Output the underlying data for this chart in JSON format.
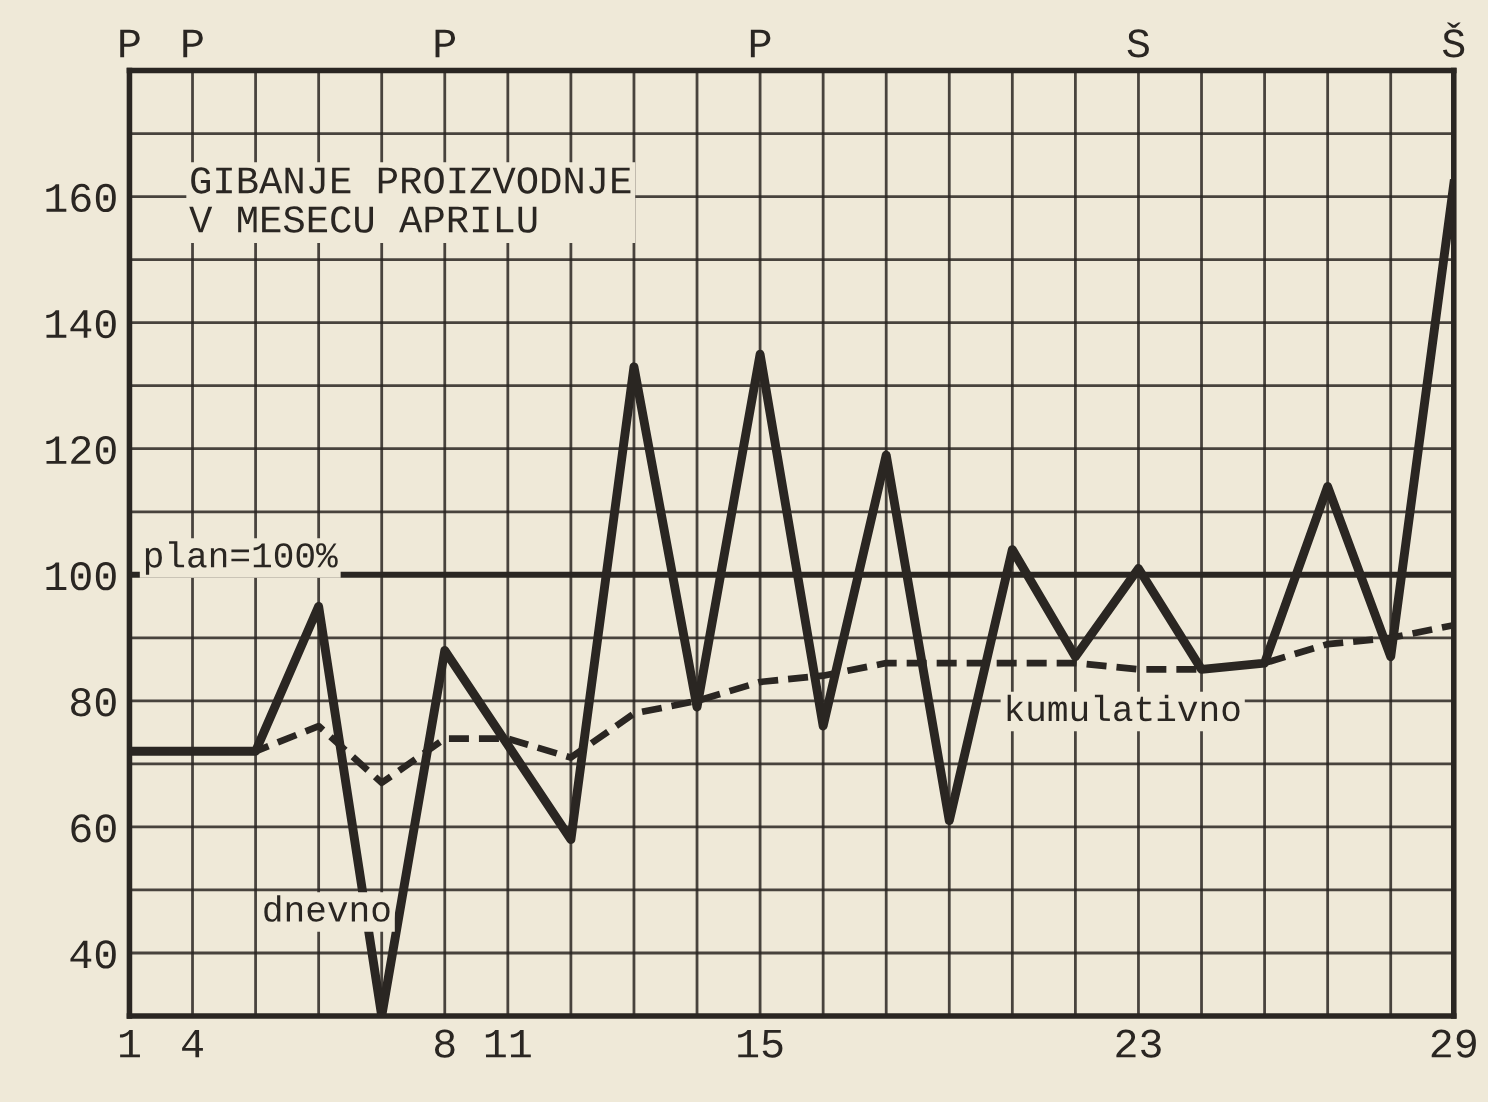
{
  "chart_data": {
    "type": "line",
    "title": "GIBANJE PROIZVODNJE\nV MESECU APRILU",
    "categories": [
      "1",
      "4",
      null,
      null,
      null,
      "8",
      "11",
      null,
      null,
      null,
      "15",
      null,
      null,
      null,
      null,
      null,
      "23",
      null,
      null,
      null,
      null,
      "29"
    ],
    "series": [
      {
        "name": "dnevno",
        "color": "#2a2622",
        "line_style": "solid",
        "values": [
          72,
          72,
          72,
          95,
          30,
          88,
          73,
          58,
          133,
          79,
          135,
          76,
          119,
          61,
          104,
          87,
          101,
          85,
          86,
          114,
          87,
          162
        ]
      },
      {
        "name": "kumulativno",
        "color": "#2a2622",
        "line_style": "dashed",
        "values": [
          72,
          72,
          72,
          76,
          67,
          74,
          74,
          71,
          78,
          80,
          83,
          84,
          86,
          86,
          86,
          86,
          85,
          85,
          86,
          89,
          90,
          92
        ]
      }
    ],
    "ylim": [
      30,
      180
    ],
    "yticks": [
      40,
      {
        "value": 50,
        "label": null
      },
      60,
      {
        "value": 70,
        "label": null
      },
      80,
      {
        "value": 90,
        "label": null
      },
      100,
      {
        "value": 110,
        "label": null
      },
      120,
      {
        "value": 130,
        "label": null
      },
      140,
      {
        "value": 150,
        "label": null
      },
      160,
      {
        "value": 170,
        "label": null
      }
    ],
    "ref_lines": [
      {
        "axis": "y",
        "value": 100,
        "label": "plan=100%"
      }
    ],
    "annotations": [
      "P",
      "P",
      "P",
      "P",
      "S",
      "Š"
    ],
    "grid": true,
    "marker": "none"
  }
}
